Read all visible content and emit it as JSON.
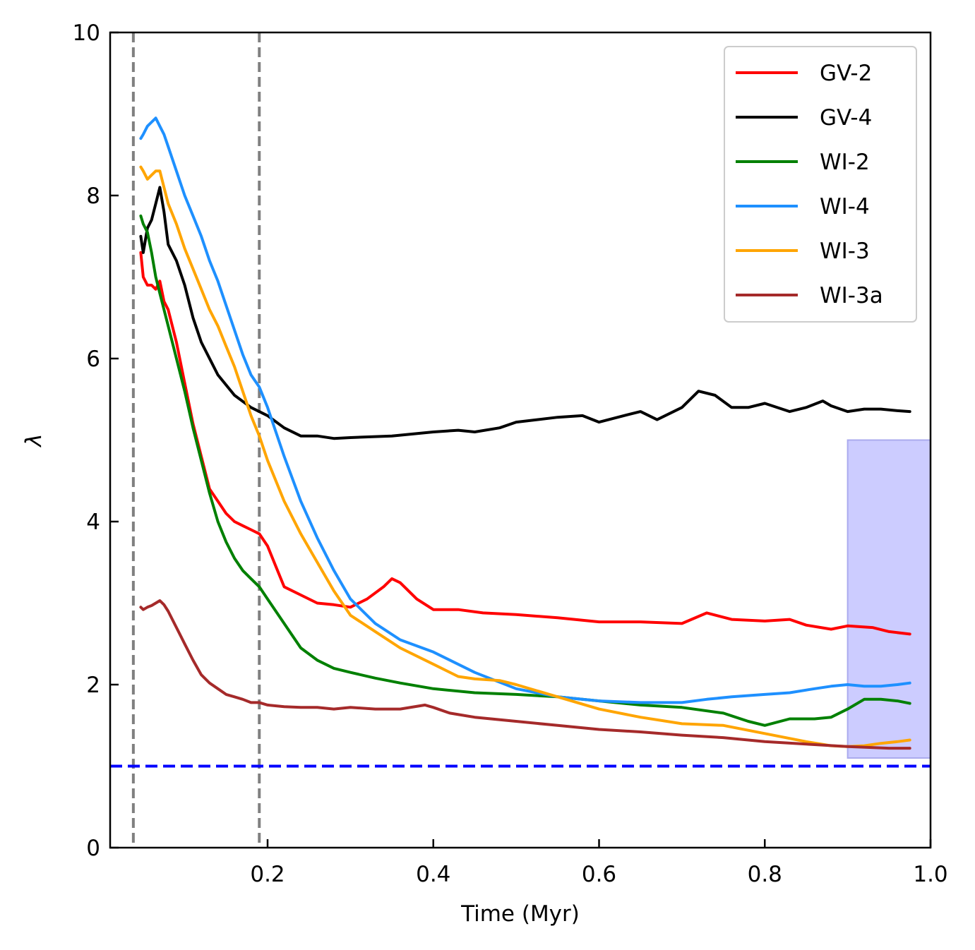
{
  "chart_data": {
    "type": "line",
    "xlabel": "Time (Myr)",
    "ylabel": "λ",
    "xlim": [
      0.01,
      1.0
    ],
    "ylim": [
      0,
      10
    ],
    "x_ticks": [
      0.2,
      0.4,
      0.6,
      0.8,
      1.0
    ],
    "x_tick_labels": [
      "0.2",
      "0.4",
      "0.6",
      "0.8",
      "1.0"
    ],
    "y_ticks": [
      0,
      2,
      4,
      6,
      8,
      10
    ],
    "y_tick_labels": [
      "0",
      "2",
      "4",
      "6",
      "8",
      "10"
    ],
    "grid": false,
    "legend_position": "top-right",
    "vertical_lines": [
      {
        "x": 0.038,
        "style": "dashed",
        "color": "#808080"
      },
      {
        "x": 0.19,
        "style": "dashed",
        "color": "#808080"
      }
    ],
    "horizontal_lines": [
      {
        "y": 1.0,
        "style": "dashed",
        "color": "#0000ff"
      }
    ],
    "shaded_regions": [
      {
        "x": [
          0.9,
          1.0
        ],
        "y": [
          1.1,
          5.0
        ],
        "color": "#ccccff",
        "edge": "#aaaaee"
      }
    ],
    "series": [
      {
        "name": "GV-2",
        "color": "#ff0000",
        "x": [
          0.047,
          0.05,
          0.055,
          0.06,
          0.065,
          0.07,
          0.075,
          0.08,
          0.09,
          0.1,
          0.11,
          0.12,
          0.13,
          0.14,
          0.15,
          0.16,
          0.17,
          0.18,
          0.19,
          0.2,
          0.21,
          0.22,
          0.24,
          0.26,
          0.28,
          0.3,
          0.32,
          0.34,
          0.35,
          0.36,
          0.38,
          0.4,
          0.43,
          0.46,
          0.5,
          0.55,
          0.6,
          0.65,
          0.7,
          0.73,
          0.76,
          0.8,
          0.83,
          0.85,
          0.88,
          0.9,
          0.93,
          0.95,
          0.975
        ],
        "y": [
          7.3,
          7.0,
          6.9,
          6.9,
          6.85,
          6.95,
          6.7,
          6.6,
          6.2,
          5.7,
          5.2,
          4.8,
          4.4,
          4.25,
          4.1,
          4.0,
          3.95,
          3.9,
          3.85,
          3.7,
          3.45,
          3.2,
          3.1,
          3.0,
          2.98,
          2.95,
          3.05,
          3.2,
          3.3,
          3.25,
          3.05,
          2.92,
          2.92,
          2.88,
          2.86,
          2.82,
          2.77,
          2.77,
          2.75,
          2.88,
          2.8,
          2.78,
          2.8,
          2.73,
          2.68,
          2.72,
          2.7,
          2.65,
          2.62
        ]
      },
      {
        "name": "GV-4",
        "color": "#000000",
        "x": [
          0.047,
          0.05,
          0.055,
          0.06,
          0.065,
          0.07,
          0.075,
          0.08,
          0.09,
          0.1,
          0.11,
          0.12,
          0.14,
          0.16,
          0.18,
          0.2,
          0.22,
          0.24,
          0.26,
          0.28,
          0.3,
          0.35,
          0.4,
          0.43,
          0.45,
          0.48,
          0.5,
          0.55,
          0.58,
          0.6,
          0.63,
          0.65,
          0.67,
          0.7,
          0.72,
          0.74,
          0.76,
          0.78,
          0.8,
          0.83,
          0.85,
          0.87,
          0.88,
          0.9,
          0.92,
          0.94,
          0.96,
          0.975
        ],
        "y": [
          7.5,
          7.3,
          7.6,
          7.7,
          7.9,
          8.1,
          7.8,
          7.4,
          7.2,
          6.9,
          6.5,
          6.2,
          5.8,
          5.55,
          5.4,
          5.3,
          5.15,
          5.05,
          5.05,
          5.02,
          5.03,
          5.05,
          5.1,
          5.12,
          5.1,
          5.15,
          5.22,
          5.28,
          5.3,
          5.22,
          5.3,
          5.35,
          5.25,
          5.4,
          5.6,
          5.55,
          5.4,
          5.4,
          5.45,
          5.35,
          5.4,
          5.48,
          5.42,
          5.35,
          5.38,
          5.38,
          5.36,
          5.35
        ]
      },
      {
        "name": "WI-2",
        "color": "#008000",
        "x": [
          0.047,
          0.05,
          0.055,
          0.06,
          0.065,
          0.07,
          0.08,
          0.09,
          0.1,
          0.11,
          0.12,
          0.13,
          0.14,
          0.15,
          0.16,
          0.17,
          0.18,
          0.19,
          0.2,
          0.22,
          0.24,
          0.26,
          0.28,
          0.3,
          0.33,
          0.36,
          0.4,
          0.45,
          0.5,
          0.55,
          0.6,
          0.65,
          0.7,
          0.75,
          0.78,
          0.8,
          0.83,
          0.86,
          0.88,
          0.9,
          0.92,
          0.94,
          0.96,
          0.975
        ],
        "y": [
          7.75,
          7.65,
          7.55,
          7.3,
          7.0,
          6.8,
          6.4,
          6.0,
          5.6,
          5.15,
          4.75,
          4.35,
          4.0,
          3.75,
          3.55,
          3.4,
          3.3,
          3.2,
          3.05,
          2.75,
          2.45,
          2.3,
          2.2,
          2.15,
          2.08,
          2.02,
          1.95,
          1.9,
          1.88,
          1.85,
          1.8,
          1.75,
          1.72,
          1.65,
          1.55,
          1.5,
          1.58,
          1.58,
          1.6,
          1.7,
          1.82,
          1.82,
          1.8,
          1.77
        ]
      },
      {
        "name": "WI-4",
        "color": "#1e90ff",
        "x": [
          0.047,
          0.05,
          0.055,
          0.06,
          0.065,
          0.07,
          0.075,
          0.08,
          0.09,
          0.1,
          0.11,
          0.12,
          0.13,
          0.14,
          0.15,
          0.16,
          0.17,
          0.18,
          0.19,
          0.2,
          0.22,
          0.24,
          0.26,
          0.28,
          0.3,
          0.33,
          0.36,
          0.4,
          0.45,
          0.5,
          0.55,
          0.6,
          0.65,
          0.7,
          0.73,
          0.76,
          0.8,
          0.83,
          0.86,
          0.88,
          0.9,
          0.92,
          0.94,
          0.96,
          0.975
        ],
        "y": [
          8.7,
          8.75,
          8.85,
          8.9,
          8.95,
          8.85,
          8.75,
          8.6,
          8.3,
          8.0,
          7.75,
          7.5,
          7.2,
          6.95,
          6.65,
          6.35,
          6.05,
          5.8,
          5.65,
          5.4,
          4.8,
          4.25,
          3.8,
          3.4,
          3.05,
          2.75,
          2.55,
          2.4,
          2.15,
          1.95,
          1.85,
          1.8,
          1.78,
          1.78,
          1.82,
          1.85,
          1.88,
          1.9,
          1.95,
          1.98,
          2.0,
          1.98,
          1.98,
          2.0,
          2.02
        ]
      },
      {
        "name": "WI-3",
        "color": "#ffa500",
        "x": [
          0.047,
          0.05,
          0.055,
          0.06,
          0.065,
          0.07,
          0.075,
          0.08,
          0.09,
          0.1,
          0.11,
          0.12,
          0.13,
          0.14,
          0.15,
          0.16,
          0.17,
          0.18,
          0.19,
          0.2,
          0.22,
          0.24,
          0.26,
          0.28,
          0.3,
          0.33,
          0.36,
          0.4,
          0.43,
          0.45,
          0.48,
          0.5,
          0.55,
          0.6,
          0.65,
          0.7,
          0.75,
          0.8,
          0.85,
          0.88,
          0.9,
          0.92,
          0.94,
          0.96,
          0.975
        ],
        "y": [
          8.35,
          8.3,
          8.2,
          8.25,
          8.3,
          8.3,
          8.1,
          7.9,
          7.65,
          7.35,
          7.1,
          6.85,
          6.6,
          6.4,
          6.15,
          5.9,
          5.6,
          5.3,
          5.05,
          4.75,
          4.25,
          3.85,
          3.5,
          3.15,
          2.85,
          2.65,
          2.45,
          2.25,
          2.1,
          2.07,
          2.05,
          2.0,
          1.85,
          1.7,
          1.6,
          1.52,
          1.5,
          1.4,
          1.3,
          1.25,
          1.24,
          1.25,
          1.28,
          1.3,
          1.32
        ]
      },
      {
        "name": "WI-3a",
        "color": "#a52a2a",
        "x": [
          0.047,
          0.05,
          0.055,
          0.06,
          0.065,
          0.07,
          0.075,
          0.08,
          0.09,
          0.1,
          0.11,
          0.12,
          0.13,
          0.14,
          0.15,
          0.16,
          0.17,
          0.18,
          0.19,
          0.2,
          0.22,
          0.24,
          0.26,
          0.28,
          0.3,
          0.33,
          0.36,
          0.39,
          0.4,
          0.42,
          0.45,
          0.5,
          0.55,
          0.6,
          0.65,
          0.7,
          0.75,
          0.8,
          0.85,
          0.9,
          0.95,
          0.975
        ],
        "y": [
          2.95,
          2.92,
          2.95,
          2.97,
          3.0,
          3.03,
          2.98,
          2.9,
          2.7,
          2.5,
          2.3,
          2.12,
          2.02,
          1.95,
          1.88,
          1.85,
          1.82,
          1.78,
          1.78,
          1.75,
          1.73,
          1.72,
          1.72,
          1.7,
          1.72,
          1.7,
          1.7,
          1.75,
          1.72,
          1.65,
          1.6,
          1.55,
          1.5,
          1.45,
          1.42,
          1.38,
          1.35,
          1.3,
          1.27,
          1.24,
          1.22,
          1.22
        ]
      }
    ]
  }
}
